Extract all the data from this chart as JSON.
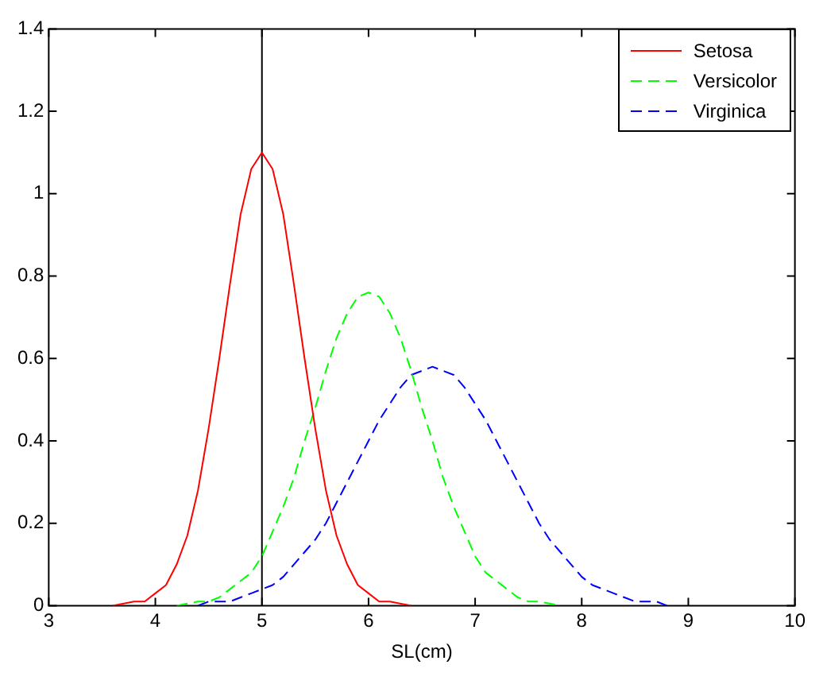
{
  "chart_data": {
    "type": "line",
    "xlabel": "SL(cm)",
    "xlim": [
      3,
      10
    ],
    "xticks": [
      3,
      4,
      5,
      6,
      7,
      8,
      9,
      10
    ],
    "ylim": [
      0,
      1.4
    ],
    "yticks": [
      0,
      0.2,
      0.4,
      0.6,
      0.8,
      1,
      1.2,
      1.4
    ],
    "grid": false,
    "legend": "top right",
    "marker": "none",
    "ref_lines": [
      {
        "axis": "x",
        "value": 5,
        "color": "#000000"
      }
    ],
    "series": [
      {
        "name": "Setosa",
        "color": "#ff0000",
        "line_style": "solid",
        "x": [
          3.6,
          3.8,
          3.9,
          4.0,
          4.1,
          4.2,
          4.3,
          4.4,
          4.5,
          4.6,
          4.7,
          4.8,
          4.9,
          5.0,
          5.1,
          5.2,
          5.3,
          5.4,
          5.5,
          5.6,
          5.7,
          5.8,
          5.9,
          6.0,
          6.1,
          6.2,
          6.4
        ],
        "values": [
          0,
          0.01,
          0.01,
          0.03,
          0.05,
          0.1,
          0.17,
          0.28,
          0.43,
          0.6,
          0.78,
          0.95,
          1.06,
          1.1,
          1.06,
          0.95,
          0.78,
          0.6,
          0.43,
          0.28,
          0.17,
          0.1,
          0.05,
          0.03,
          0.01,
          0.01,
          0
        ]
      },
      {
        "name": "Versicolor",
        "color": "#00ff00",
        "line_style": "dashed",
        "x": [
          4.2,
          4.4,
          4.5,
          4.6,
          4.7,
          4.8,
          4.9,
          5.0,
          5.1,
          5.2,
          5.3,
          5.4,
          5.5,
          5.6,
          5.7,
          5.8,
          5.9,
          6.0,
          6.1,
          6.2,
          6.3,
          6.4,
          6.5,
          6.6,
          6.7,
          6.8,
          6.9,
          7.0,
          7.1,
          7.2,
          7.3,
          7.4,
          7.5,
          7.6,
          7.8
        ],
        "values": [
          0,
          0.01,
          0.01,
          0.02,
          0.04,
          0.06,
          0.08,
          0.12,
          0.18,
          0.24,
          0.31,
          0.4,
          0.48,
          0.57,
          0.65,
          0.71,
          0.75,
          0.76,
          0.75,
          0.71,
          0.65,
          0.57,
          0.48,
          0.4,
          0.31,
          0.24,
          0.18,
          0.12,
          0.08,
          0.06,
          0.04,
          0.02,
          0.01,
          0.01,
          0
        ]
      },
      {
        "name": "Virginica",
        "color": "#0000ff",
        "line_style": "dashed",
        "x": [
          4.4,
          4.5,
          4.6,
          4.7,
          4.8,
          4.9,
          5.0,
          5.1,
          5.2,
          5.3,
          5.4,
          5.5,
          5.6,
          5.7,
          5.8,
          5.9,
          6.0,
          6.1,
          6.2,
          6.3,
          6.4,
          6.5,
          6.6,
          6.7,
          6.8,
          6.9,
          7.0,
          7.1,
          7.2,
          7.3,
          7.4,
          7.5,
          7.6,
          7.7,
          7.8,
          7.9,
          8.0,
          8.1,
          8.2,
          8.3,
          8.4,
          8.5,
          8.6,
          8.7,
          8.8
        ],
        "values": [
          0,
          0.01,
          0.01,
          0.01,
          0.02,
          0.03,
          0.04,
          0.05,
          0.07,
          0.1,
          0.13,
          0.16,
          0.2,
          0.25,
          0.3,
          0.35,
          0.4,
          0.45,
          0.49,
          0.53,
          0.56,
          0.57,
          0.58,
          0.57,
          0.56,
          0.53,
          0.49,
          0.45,
          0.4,
          0.35,
          0.3,
          0.25,
          0.2,
          0.16,
          0.13,
          0.1,
          0.07,
          0.05,
          0.04,
          0.03,
          0.02,
          0.01,
          0.01,
          0.01,
          0
        ]
      }
    ]
  }
}
